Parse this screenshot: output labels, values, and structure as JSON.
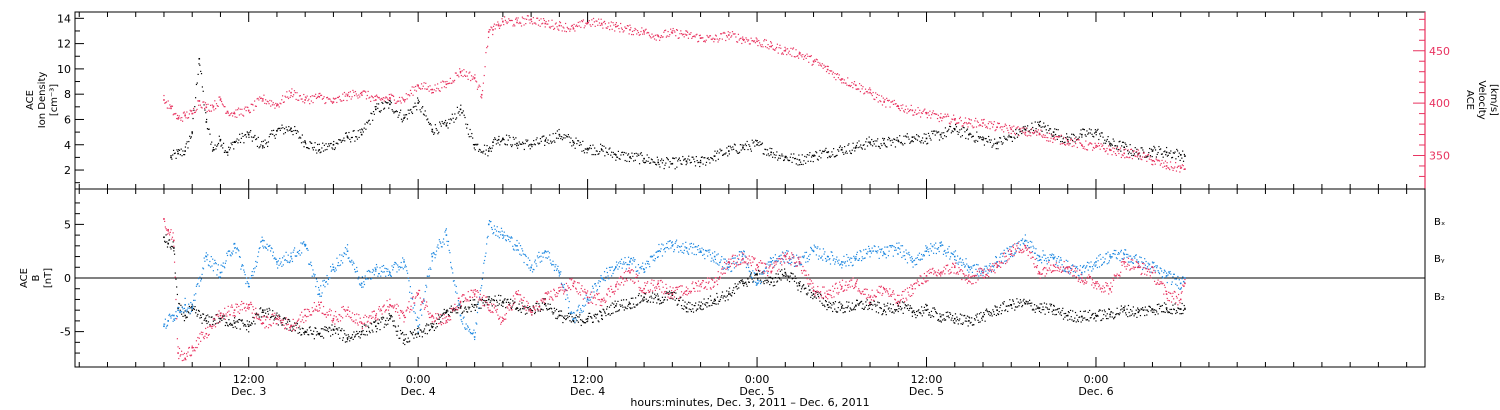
{
  "chart_data": [
    {
      "type": "scatter",
      "panel": "top",
      "ylabel_lines": [
        "ACE",
        "Ion Density",
        "[cm⁻³]"
      ],
      "y2label_lines": [
        "ACE",
        "Velocity",
        "[km/s]"
      ],
      "ylim": [
        0.5,
        14.5
      ],
      "yticks": [
        2,
        4,
        6,
        8,
        10,
        12,
        14
      ],
      "y2lim": [
        318,
        487
      ],
      "y2ticks": [
        350,
        400,
        450
      ],
      "colors": {
        "density": "#000000",
        "velocity": "#e8325f"
      },
      "series": [
        {
          "key": "density",
          "x_hours": [
            0.5,
            1,
            1.5,
            2,
            2.5,
            3,
            3.5,
            4,
            4.5,
            5,
            6,
            7,
            8,
            9,
            10,
            11,
            12,
            13,
            14,
            15,
            16,
            17,
            18,
            19,
            20,
            21,
            22,
            23,
            23.3,
            23.7,
            24,
            25,
            26,
            27,
            28,
            29,
            30,
            31,
            32,
            33,
            34,
            35,
            36,
            37,
            38,
            39,
            40,
            41,
            42,
            43,
            44,
            45,
            46,
            47,
            48,
            49,
            50,
            51,
            52,
            53,
            54,
            55,
            56,
            57,
            58,
            59,
            60,
            61,
            62,
            63,
            64,
            65,
            66,
            67,
            68,
            69,
            70,
            71,
            72,
            72.3
          ],
          "values": [
            3.0,
            3.3,
            3.5,
            5.0,
            10.8,
            5.8,
            3.6,
            4.4,
            3.4,
            4.2,
            4.8,
            3.9,
            5.1,
            5.3,
            4.2,
            3.6,
            4.0,
            4.6,
            4.8,
            6.8,
            7.2,
            6.1,
            7.3,
            5.2,
            5.5,
            6.8,
            4.0,
            3.5,
            4.2,
            4.4,
            4.5,
            4.1,
            4.0,
            4.3,
            4.8,
            4.2,
            3.7,
            3.6,
            3.2,
            3.0,
            2.9,
            2.6,
            2.5,
            2.7,
            2.6,
            3.1,
            3.5,
            3.8,
            4.0,
            3.4,
            3.0,
            2.8,
            3.1,
            3.4,
            3.6,
            3.8,
            4.2,
            4.1,
            4.3,
            4.6,
            4.5,
            4.8,
            5.2,
            4.8,
            4.4,
            4.1,
            4.6,
            5.2,
            5.5,
            5.0,
            4.4,
            4.8,
            5.0,
            4.1,
            3.8,
            3.3,
            3.5,
            3.4,
            3.2,
            3.1
          ]
        },
        {
          "key": "velocity",
          "x_hours": [
            0,
            0.5,
            1,
            1.5,
            2,
            2.5,
            3,
            3.5,
            4,
            4.5,
            5,
            6,
            7,
            8,
            9,
            10,
            11,
            12,
            13,
            14,
            15,
            16,
            17,
            18,
            19,
            20,
            21,
            22,
            22.5,
            23,
            23.3,
            23.7,
            24,
            25,
            26,
            27,
            28,
            29,
            30,
            31,
            32,
            33,
            34,
            35,
            36,
            37,
            38,
            39,
            40,
            41,
            42,
            43,
            44,
            45,
            46,
            47,
            48,
            49,
            50,
            51,
            52,
            53,
            54,
            55,
            56,
            57,
            58,
            59,
            60,
            61,
            62,
            63,
            64,
            65,
            66,
            67,
            68,
            69,
            70,
            71,
            72,
            72.3
          ],
          "values": [
            403,
            395,
            385,
            388,
            390,
            402,
            396,
            397,
            403,
            392,
            390,
            393,
            404,
            398,
            410,
            403,
            406,
            401,
            407,
            410,
            403,
            405,
            403,
            417,
            413,
            418,
            430,
            424,
            408,
            468,
            470,
            474,
            478,
            477,
            480,
            476,
            474,
            471,
            477,
            476,
            473,
            470,
            468,
            464,
            467,
            465,
            462,
            461,
            465,
            461,
            459,
            454,
            450,
            447,
            440,
            432,
            423,
            417,
            410,
            401,
            397,
            393,
            390,
            386,
            384,
            381,
            381,
            377,
            375,
            372,
            371,
            366,
            364,
            360,
            358,
            355,
            352,
            351,
            345,
            340,
            338,
            337
          ]
        }
      ]
    },
    {
      "type": "scatter",
      "panel": "bottom",
      "ylabel_lines": [
        "ACE",
        "B",
        "[nT]"
      ],
      "ylim": [
        -8.3,
        8.3
      ],
      "yticks": [
        -5,
        0,
        5
      ],
      "zero_line": true,
      "legend": [
        "Bₓ",
        "Bᵧ",
        "B₂"
      ],
      "colors": {
        "Bx": "#000000",
        "By": "#1a86e0",
        "Bz": "#e8325f"
      },
      "series": [
        {
          "key": "Bx",
          "x_hours": [
            0,
            0.3,
            0.7,
            1,
            1.5,
            2,
            3,
            4,
            5,
            6,
            7,
            8,
            9,
            10,
            11,
            12,
            13,
            14,
            15,
            16,
            17,
            18,
            19,
            20,
            21,
            22,
            23,
            24,
            25,
            26,
            27,
            28,
            29,
            30,
            31,
            32,
            33,
            34,
            35,
            36,
            37,
            38,
            39,
            40,
            41,
            42,
            43,
            44,
            45,
            46,
            47,
            48,
            49,
            50,
            51,
            52,
            53,
            54,
            55,
            56,
            57,
            58,
            59,
            60,
            61,
            62,
            63,
            64,
            65,
            66,
            67,
            68,
            69,
            70,
            71,
            72,
            72.3
          ],
          "values": [
            3.8,
            3.2,
            2.8,
            -2.8,
            -3.5,
            -3.0,
            -4.0,
            -3.8,
            -4.2,
            -4.5,
            -3.0,
            -3.8,
            -4.5,
            -5.0,
            -5.2,
            -4.8,
            -5.6,
            -5.0,
            -4.5,
            -3.8,
            -5.8,
            -5.2,
            -4.6,
            -3.2,
            -2.8,
            -2.5,
            -2.0,
            -2.2,
            -2.8,
            -3.0,
            -2.4,
            -3.5,
            -4.0,
            -3.8,
            -3.5,
            -2.6,
            -2.4,
            -1.8,
            -2.0,
            -1.6,
            -2.8,
            -2.6,
            -2.0,
            -1.5,
            -0.5,
            0.3,
            -0.4,
            0.5,
            -0.7,
            -1.5,
            -2.5,
            -2.8,
            -2.6,
            -2.5,
            -3.0,
            -2.6,
            -3.2,
            -3.0,
            -3.6,
            -3.8,
            -4.0,
            -3.6,
            -3.0,
            -2.5,
            -2.4,
            -2.8,
            -3.0,
            -3.5,
            -3.6,
            -3.5,
            -3.4,
            -3.0,
            -3.2,
            -2.9,
            -2.8,
            -2.9,
            -2.9
          ]
        },
        {
          "key": "By",
          "x_hours": [
            0,
            0.3,
            0.7,
            1,
            1.5,
            2,
            3,
            4,
            5,
            6,
            7,
            8,
            9,
            10,
            11,
            12,
            13,
            14,
            15,
            16,
            17,
            18,
            19,
            20,
            21,
            22,
            23,
            24,
            25,
            26,
            27,
            28,
            29,
            30,
            31,
            32,
            33,
            34,
            35,
            36,
            37,
            38,
            39,
            40,
            41,
            42,
            43,
            44,
            45,
            46,
            47,
            48,
            49,
            50,
            51,
            52,
            53,
            54,
            55,
            56,
            57,
            58,
            59,
            60,
            61,
            62,
            63,
            64,
            65,
            66,
            67,
            68,
            69,
            70,
            71,
            72,
            72.3
          ],
          "values": [
            -4.5,
            -4.0,
            -3.5,
            -3.0,
            -2.5,
            -2.8,
            2.0,
            0.5,
            3.2,
            -0.8,
            3.5,
            1.5,
            2.0,
            3.0,
            -1.5,
            1.0,
            2.5,
            -0.5,
            0.8,
            0.5,
            1.5,
            -4.5,
            2.0,
            4.0,
            -3.5,
            -5.5,
            5.0,
            4.0,
            3.0,
            1.0,
            2.5,
            0.5,
            -3.8,
            -2.0,
            0.0,
            1.0,
            1.5,
            0.8,
            2.5,
            3.0,
            2.8,
            2.5,
            2.0,
            1.0,
            2.2,
            -0.5,
            1.5,
            2.0,
            1.5,
            2.5,
            2.0,
            1.5,
            1.8,
            2.5,
            2.3,
            2.8,
            1.5,
            2.5,
            3.0,
            2.0,
            1.0,
            0.5,
            1.5,
            2.5,
            3.5,
            2.0,
            1.8,
            1.0,
            0.5,
            1.5,
            2.0,
            2.2,
            1.5,
            1.0,
            0.2,
            -0.5,
            0.0
          ]
        },
        {
          "key": "Bz",
          "x_hours": [
            0,
            0.3,
            0.7,
            1,
            1.5,
            2,
            3,
            4,
            5,
            6,
            7,
            8,
            9,
            10,
            11,
            12,
            13,
            14,
            15,
            16,
            17,
            18,
            19,
            20,
            21,
            22,
            23,
            24,
            25,
            26,
            27,
            28,
            29,
            30,
            31,
            32,
            33,
            34,
            35,
            36,
            37,
            38,
            39,
            40,
            41,
            42,
            43,
            44,
            45,
            46,
            47,
            48,
            49,
            50,
            51,
            52,
            53,
            54,
            55,
            56,
            57,
            58,
            59,
            60,
            61,
            62,
            63,
            64,
            65,
            66,
            67,
            68,
            69,
            70,
            71,
            72,
            72.3
          ],
          "values": [
            5.5,
            4.5,
            3.5,
            -7.0,
            -7.5,
            -6.5,
            -5.2,
            -3.5,
            -3.0,
            -2.5,
            -4.2,
            -3.8,
            -4.5,
            -3.5,
            -2.5,
            -3.8,
            -3.0,
            -4.2,
            -3.5,
            -2.5,
            -3.5,
            -1.5,
            -3.5,
            -4.0,
            -2.2,
            -1.5,
            -2.5,
            -4.0,
            -1.5,
            -3.2,
            -2.0,
            -1.2,
            -0.5,
            -1.8,
            -2.0,
            -0.8,
            0.5,
            -1.0,
            -0.5,
            -1.5,
            -1.2,
            -0.6,
            -0.4,
            1.5,
            1.8,
            1.2,
            0.6,
            2.0,
            1.5,
            -1.2,
            -1.5,
            -0.8,
            -0.5,
            -1.8,
            -1.0,
            -2.2,
            -1.0,
            0.2,
            0.5,
            1.0,
            -0.3,
            0.5,
            1.0,
            2.5,
            3.0,
            0.5,
            1.2,
            1.0,
            0.0,
            -0.5,
            -1.0,
            1.5,
            1.0,
            0.5,
            -1.5,
            -2.0,
            -0.5
          ]
        }
      ]
    }
  ],
  "x_axis": {
    "xlim_hours": [
      -6.3,
      89.3
    ],
    "ticks": [
      {
        "hour": 6,
        "time": "12:00",
        "date": "Dec. 3"
      },
      {
        "hour": 18,
        "time": "0:00",
        "date": "Dec. 4"
      },
      {
        "hour": 30,
        "time": "12:00",
        "date": "Dec. 4"
      },
      {
        "hour": 42,
        "time": "0:00",
        "date": "Dec. 5"
      },
      {
        "hour": 54,
        "time": "12:00",
        "date": "Dec. 5"
      },
      {
        "hour": 66,
        "time": "0:00",
        "date": "Dec. 6"
      }
    ],
    "title": "hours:minutes, Dec.  3, 2011 – Dec.  6, 2011"
  }
}
